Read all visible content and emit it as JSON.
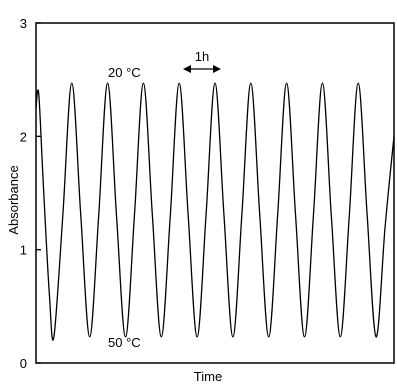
{
  "chart_data": {
    "type": "line",
    "title": "",
    "xlabel": "Time",
    "ylabel": "Absorbance",
    "ylim": [
      0,
      3
    ],
    "yticks": [
      "0",
      "1",
      "2",
      "3"
    ],
    "grid": false,
    "legend": "none",
    "line_color": "#000000",
    "series": [
      {
        "points": [
          [
            0.0,
            2.25
          ],
          [
            0.15,
            2.38
          ],
          [
            0.4,
            1.6
          ],
          [
            0.75,
            0.6
          ],
          [
            1.0,
            0.23
          ],
          [
            1.5,
            1.3
          ],
          [
            2.0,
            2.47
          ],
          [
            2.5,
            1.3
          ],
          [
            3.0,
            0.23
          ],
          [
            3.5,
            1.3
          ],
          [
            4.0,
            2.47
          ],
          [
            4.5,
            1.3
          ],
          [
            5.0,
            0.23
          ],
          [
            5.5,
            1.3
          ],
          [
            6.0,
            2.47
          ],
          [
            6.5,
            1.3
          ],
          [
            7.0,
            0.23
          ],
          [
            7.5,
            1.3
          ],
          [
            8.0,
            2.47
          ],
          [
            8.5,
            1.3
          ],
          [
            9.0,
            0.23
          ],
          [
            9.5,
            1.3
          ],
          [
            10.0,
            2.47
          ],
          [
            10.5,
            1.3
          ],
          [
            11.0,
            0.23
          ],
          [
            11.5,
            1.3
          ],
          [
            12.0,
            2.47
          ],
          [
            12.5,
            1.3
          ],
          [
            13.0,
            0.23
          ],
          [
            13.5,
            1.3
          ],
          [
            14.0,
            2.47
          ],
          [
            14.5,
            1.3
          ],
          [
            15.0,
            0.23
          ],
          [
            15.5,
            1.3
          ],
          [
            16.0,
            2.47
          ],
          [
            16.5,
            1.3
          ],
          [
            17.0,
            0.23
          ],
          [
            17.5,
            1.3
          ],
          [
            18.0,
            2.47
          ],
          [
            18.5,
            1.3
          ],
          [
            19.0,
            0.23
          ],
          [
            19.5,
            1.2
          ],
          [
            20.0,
            2.0
          ]
        ]
      }
    ],
    "annotations": {
      "peak_label": "20 °C",
      "trough_label": "50 °C",
      "period_label": "1h"
    }
  }
}
